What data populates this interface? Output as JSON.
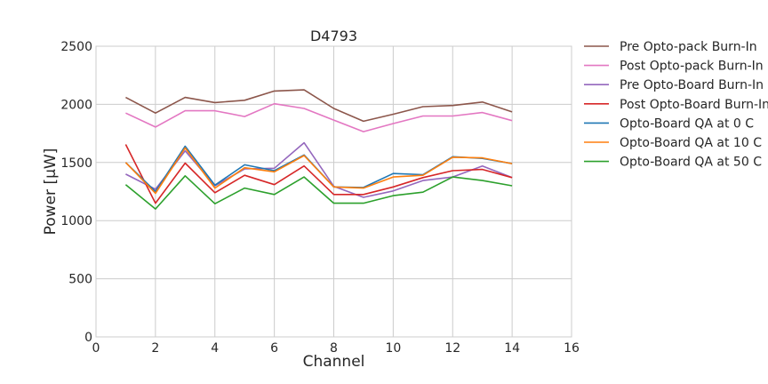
{
  "chart_data": {
    "type": "line",
    "title": "D4793",
    "xlabel": "Channel",
    "ylabel": "Power [μW]",
    "xlim": [
      0,
      16
    ],
    "ylim": [
      0,
      2500
    ],
    "xticks": [
      0,
      2,
      4,
      6,
      8,
      10,
      12,
      14,
      16
    ],
    "yticks": [
      0,
      500,
      1000,
      1500,
      2000,
      2500
    ],
    "grid": true,
    "legend_position": "outside-right",
    "x": [
      1,
      2,
      3,
      4,
      5,
      6,
      7,
      8,
      9,
      10,
      11,
      12,
      13,
      14
    ],
    "series": [
      {
        "name": "Pre Opto-pack Burn-In",
        "color": "#8c564b",
        "values": [
          2060,
          1925,
          2060,
          2015,
          2035,
          2115,
          2125,
          1965,
          1855,
          1915,
          1980,
          1990,
          2020,
          1935
        ]
      },
      {
        "name": "Post Opto-pack Burn-In",
        "color": "#e377c2",
        "values": [
          1925,
          1805,
          1945,
          1945,
          1895,
          2005,
          1965,
          1865,
          1765,
          1835,
          1900,
          1900,
          1930,
          1860
        ]
      },
      {
        "name": "Pre Opto-Board Burn-In",
        "color": "#9467bd",
        "values": [
          1400,
          1270,
          1600,
          1300,
          1445,
          1450,
          1670,
          1295,
          1200,
          1255,
          1345,
          1375,
          1470,
          1370
        ]
      },
      {
        "name": "Post Opto-Board Burn-In",
        "color": "#d62728",
        "values": [
          1655,
          1150,
          1495,
          1240,
          1390,
          1310,
          1470,
          1225,
          1225,
          1290,
          1370,
          1430,
          1440,
          1370
        ]
      },
      {
        "name": "Opto-Board QA at 0 C",
        "color": "#1f77b4",
        "values": [
          1500,
          1250,
          1640,
          1305,
          1480,
          1430,
          1565,
          1290,
          1285,
          1405,
          1395,
          1550,
          1535,
          1490
        ]
      },
      {
        "name": "Opto-Board QA at 10 C",
        "color": "#ff7f0e",
        "values": [
          1500,
          1235,
          1625,
          1280,
          1455,
          1420,
          1560,
          1290,
          1280,
          1375,
          1390,
          1545,
          1540,
          1490
        ]
      },
      {
        "name": "Opto-Board QA at 50 C",
        "color": "#2ca02c",
        "values": [
          1310,
          1100,
          1385,
          1145,
          1280,
          1225,
          1375,
          1150,
          1150,
          1215,
          1245,
          1375,
          1345,
          1300
        ]
      }
    ]
  }
}
